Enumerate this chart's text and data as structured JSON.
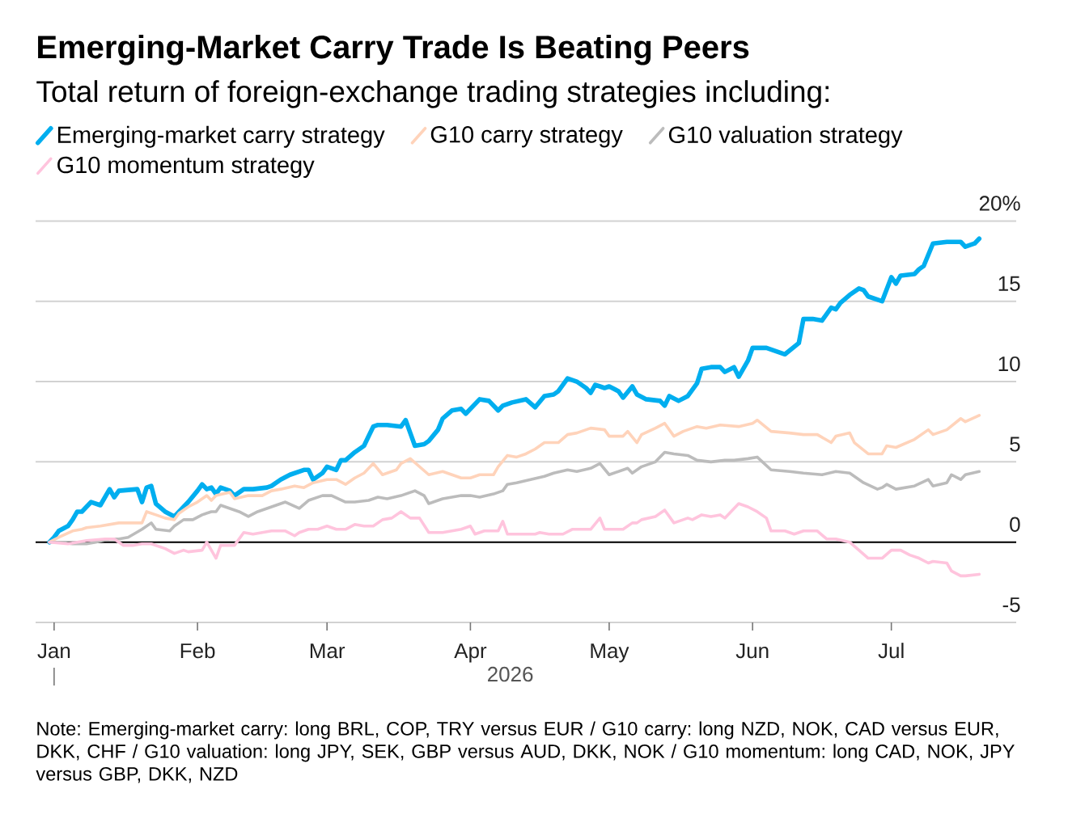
{
  "chart_data": {
    "type": "line",
    "title": "Emerging-Market Carry Trade Is Beating Peers",
    "subtitle": "Total return of foreign-exchange trading strategies including:",
    "xlabel": "2026",
    "annotations": [
      "Note: Emerging-market carry: long BRL, COP, TRY versus EUR / G10 carry: long NZD, NOK, CAD versus EUR, DKK, CHF / G10 valuation: long JPY, SEK, GBP versus AUD, DKK, NOK / G10 momentum: long CAD, NOK, JPY versus GBP, DKK, NZD"
    ],
    "xlim": [
      "2025-12-28",
      "2026-07-28"
    ],
    "xticks": [
      {
        "value": "2026-01-01",
        "label": "Jan"
      },
      {
        "value": "2026-02-01",
        "label": "Feb"
      },
      {
        "value": "2026-03-01",
        "label": "Mar"
      },
      {
        "value": "2026-04-01",
        "label": "Apr"
      },
      {
        "value": "2026-05-01",
        "label": "May"
      },
      {
        "value": "2026-06-01",
        "label": "Jun"
      },
      {
        "value": "2026-07-01",
        "label": "Jul"
      }
    ],
    "ylim": [
      -5,
      20
    ],
    "yticks": [
      -5,
      0,
      5,
      10,
      15,
      {
        "value": 20,
        "label": "20%"
      }
    ],
    "grid": "y",
    "legend": "top",
    "marker": "none",
    "ref_lines": [
      {
        "axis": "y",
        "value": 0,
        "color": "#000000"
      }
    ],
    "series": [
      {
        "name": "Emerging-market carry strategy",
        "color": "#00aeef",
        "x": [
          "2025-12-31",
          "2026-01-01",
          "2026-01-02",
          "2026-01-04",
          "2026-01-05",
          "2026-01-06",
          "2026-01-07",
          "2026-01-09",
          "2026-01-10",
          "2026-01-11",
          "2026-01-13",
          "2026-01-14",
          "2026-01-15",
          "2026-01-19",
          "2026-01-20",
          "2026-01-21",
          "2026-01-22",
          "2026-01-23",
          "2026-01-25",
          "2026-01-27",
          "2026-01-29",
          "2026-01-30",
          "2026-02-01",
          "2026-02-02",
          "2026-02-03",
          "2026-02-04",
          "2026-02-05",
          "2026-02-06",
          "2026-02-08",
          "2026-02-09",
          "2026-02-11",
          "2026-02-13",
          "2026-02-16",
          "2026-02-17",
          "2026-02-19",
          "2026-02-21",
          "2026-02-24",
          "2026-02-25",
          "2026-02-26",
          "2026-02-28",
          "2026-03-01",
          "2026-03-03",
          "2026-03-04",
          "2026-03-05",
          "2026-03-07",
          "2026-03-09",
          "2026-03-10",
          "2026-03-11",
          "2026-03-12",
          "2026-03-14",
          "2026-03-17",
          "2026-03-18",
          "2026-03-19",
          "2026-03-20",
          "2026-03-22",
          "2026-03-23",
          "2026-03-25",
          "2026-03-26",
          "2026-03-28",
          "2026-03-30",
          "2026-03-31",
          "2026-04-02",
          "2026-04-03",
          "2026-04-05",
          "2026-04-07",
          "2026-04-08",
          "2026-04-10",
          "2026-04-13",
          "2026-04-15",
          "2026-04-17",
          "2026-04-19",
          "2026-04-20",
          "2026-04-22",
          "2026-04-24",
          "2026-04-26",
          "2026-04-27",
          "2026-04-28",
          "2026-04-29",
          "2026-04-30",
          "2026-05-01",
          "2026-05-03",
          "2026-05-04",
          "2026-05-06",
          "2026-05-07",
          "2026-05-09",
          "2026-05-12",
          "2026-05-13",
          "2026-05-14",
          "2026-05-16",
          "2026-05-18",
          "2026-05-20",
          "2026-05-21",
          "2026-05-23",
          "2026-05-25",
          "2026-05-26",
          "2026-05-28",
          "2026-05-29",
          "2026-05-31",
          "2026-06-01",
          "2026-06-04",
          "2026-06-06",
          "2026-06-08",
          "2026-06-11",
          "2026-06-12",
          "2026-06-14",
          "2026-06-16",
          "2026-06-18",
          "2026-06-19",
          "2026-06-20",
          "2026-06-22",
          "2026-06-24",
          "2026-06-25",
          "2026-06-26",
          "2026-06-29",
          "2026-07-01",
          "2026-07-02",
          "2026-07-03",
          "2026-07-06",
          "2026-07-07",
          "2026-07-08",
          "2026-07-10",
          "2026-07-13",
          "2026-07-16",
          "2026-07-17",
          "2026-07-19",
          "2026-07-20"
        ],
        "values": [
          0,
          0.3,
          0.7,
          1.0,
          1.4,
          1.9,
          1.9,
          2.5,
          2.4,
          2.3,
          3.3,
          2.8,
          3.2,
          3.3,
          2.5,
          3.4,
          3.5,
          2.4,
          1.9,
          1.6,
          2.2,
          2.5,
          3.2,
          3.6,
          3.3,
          3.4,
          3.0,
          3.4,
          3.2,
          2.9,
          3.3,
          3.3,
          3.4,
          3.5,
          3.9,
          4.2,
          4.5,
          4.5,
          3.9,
          4.3,
          4.7,
          4.5,
          5.1,
          5.1,
          5.6,
          6.0,
          6.6,
          7.2,
          7.3,
          7.3,
          7.2,
          7.6,
          6.8,
          6.0,
          6.1,
          6.3,
          7.0,
          7.7,
          8.2,
          8.3,
          8.0,
          8.6,
          8.9,
          8.8,
          8.2,
          8.5,
          8.7,
          8.9,
          8.4,
          9.1,
          9.2,
          9.4,
          10.2,
          10.0,
          9.6,
          9.3,
          9.8,
          9.7,
          9.6,
          9.7,
          9.4,
          9.0,
          9.7,
          9.2,
          8.9,
          8.8,
          8.5,
          9.1,
          8.8,
          9.1,
          9.9,
          10.8,
          10.9,
          10.9,
          10.6,
          10.9,
          10.3,
          11.3,
          12.1,
          12.1,
          11.9,
          11.7,
          12.4,
          13.9,
          13.9,
          13.8,
          14.6,
          14.5,
          14.9,
          15.4,
          15.8,
          15.7,
          15.3,
          15.0,
          16.5,
          16.1,
          16.6,
          16.7,
          17.0,
          17.2,
          18.6,
          18.7,
          18.7,
          18.4,
          18.6,
          18.9
        ]
      },
      {
        "name": "G10 carry strategy",
        "color": "#ffd3ba",
        "x": [
          "2025-12-31",
          "2026-01-02",
          "2026-01-05",
          "2026-01-07",
          "2026-01-08",
          "2026-01-11",
          "2026-01-13",
          "2026-01-15",
          "2026-01-18",
          "2026-01-20",
          "2026-01-21",
          "2026-01-23",
          "2026-01-25",
          "2026-01-27",
          "2026-01-28",
          "2026-01-30",
          "2026-02-01",
          "2026-02-03",
          "2026-02-04",
          "2026-02-05",
          "2026-02-08",
          "2026-02-09",
          "2026-02-12",
          "2026-02-15",
          "2026-02-17",
          "2026-02-19",
          "2026-02-22",
          "2026-02-24",
          "2026-02-26",
          "2026-03-01",
          "2026-03-03",
          "2026-03-05",
          "2026-03-07",
          "2026-03-09",
          "2026-03-11",
          "2026-03-13",
          "2026-03-16",
          "2026-03-17",
          "2026-03-19",
          "2026-03-21",
          "2026-03-23",
          "2026-03-26",
          "2026-03-30",
          "2026-04-01",
          "2026-04-03",
          "2026-04-06",
          "2026-04-07",
          "2026-04-09",
          "2026-04-11",
          "2026-04-13",
          "2026-04-15",
          "2026-04-17",
          "2026-04-20",
          "2026-04-22",
          "2026-04-24",
          "2026-04-27",
          "2026-04-30",
          "2026-05-01",
          "2026-05-04",
          "2026-05-05",
          "2026-05-07",
          "2026-05-08",
          "2026-05-11",
          "2026-05-13",
          "2026-05-15",
          "2026-05-17",
          "2026-05-20",
          "2026-05-22",
          "2026-05-25",
          "2026-05-29",
          "2026-06-01",
          "2026-06-02",
          "2026-06-05",
          "2026-06-09",
          "2026-06-12",
          "2026-06-15",
          "2026-06-18",
          "2026-06-19",
          "2026-06-22",
          "2026-06-23",
          "2026-06-26",
          "2026-06-29",
          "2026-06-30",
          "2026-07-02",
          "2026-07-06",
          "2026-07-09",
          "2026-07-10",
          "2026-07-13",
          "2026-07-16",
          "2026-07-17",
          "2026-07-20"
        ],
        "values": [
          0,
          0.3,
          0.7,
          0.8,
          0.9,
          1.0,
          1.1,
          1.2,
          1.2,
          1.2,
          1.9,
          1.7,
          1.5,
          1.4,
          1.8,
          2.2,
          2.5,
          2.9,
          2.6,
          2.9,
          3.1,
          2.7,
          2.9,
          2.9,
          3.2,
          3.3,
          3.5,
          3.4,
          3.7,
          3.9,
          3.9,
          3.6,
          4.0,
          4.3,
          4.9,
          4.2,
          4.5,
          4.9,
          5.2,
          4.7,
          4.2,
          4.4,
          4.0,
          4.0,
          4.2,
          4.2,
          4.7,
          5.4,
          5.3,
          5.5,
          5.8,
          6.2,
          6.2,
          6.7,
          6.8,
          7.1,
          7.0,
          6.6,
          6.6,
          6.9,
          6.2,
          6.7,
          7.1,
          7.4,
          6.6,
          6.9,
          7.2,
          7.1,
          7.3,
          7.2,
          7.4,
          7.6,
          6.9,
          6.8,
          6.7,
          6.7,
          6.2,
          6.6,
          6.8,
          6.2,
          5.5,
          5.5,
          6.0,
          5.9,
          6.4,
          7.0,
          6.7,
          7.0,
          7.7,
          7.5,
          7.9
        ]
      },
      {
        "name": "G10 valuation strategy",
        "color": "#bcbcbc",
        "x": [
          "2025-12-31",
          "2026-01-02",
          "2026-01-05",
          "2026-01-08",
          "2026-01-10",
          "2026-01-13",
          "2026-01-15",
          "2026-01-17",
          "2026-01-20",
          "2026-01-22",
          "2026-01-23",
          "2026-01-26",
          "2026-01-27",
          "2026-01-29",
          "2026-01-31",
          "2026-02-02",
          "2026-02-04",
          "2026-02-05",
          "2026-02-06",
          "2026-02-07",
          "2026-02-10",
          "2026-02-12",
          "2026-02-14",
          "2026-02-17",
          "2026-02-20",
          "2026-02-23",
          "2026-02-25",
          "2026-02-28",
          "2026-03-02",
          "2026-03-05",
          "2026-03-07",
          "2026-03-10",
          "2026-03-12",
          "2026-03-14",
          "2026-03-17",
          "2026-03-20",
          "2026-03-22",
          "2026-03-23",
          "2026-03-26",
          "2026-03-30",
          "2026-04-01",
          "2026-04-03",
          "2026-04-06",
          "2026-04-08",
          "2026-04-09",
          "2026-04-11",
          "2026-04-14",
          "2026-04-17",
          "2026-04-19",
          "2026-04-22",
          "2026-04-24",
          "2026-04-27",
          "2026-04-29",
          "2026-05-01",
          "2026-05-03",
          "2026-05-05",
          "2026-05-06",
          "2026-05-08",
          "2026-05-11",
          "2026-05-13",
          "2026-05-15",
          "2026-05-18",
          "2026-05-20",
          "2026-05-23",
          "2026-05-26",
          "2026-05-28",
          "2026-05-31",
          "2026-06-02",
          "2026-06-05",
          "2026-06-09",
          "2026-06-12",
          "2026-06-16",
          "2026-06-19",
          "2026-06-22",
          "2026-06-25",
          "2026-06-28",
          "2026-06-29",
          "2026-06-30",
          "2026-07-02",
          "2026-07-06",
          "2026-07-09",
          "2026-07-10",
          "2026-07-13",
          "2026-07-14",
          "2026-07-16",
          "2026-07-17",
          "2026-07-20"
        ],
        "values": [
          0,
          0.0,
          -0.1,
          -0.1,
          0.0,
          0.2,
          0.2,
          0.3,
          0.8,
          1.2,
          0.8,
          0.7,
          1.0,
          1.4,
          1.4,
          1.7,
          1.9,
          1.9,
          2.3,
          2.2,
          1.9,
          1.6,
          1.9,
          2.2,
          2.5,
          2.1,
          2.6,
          2.9,
          2.9,
          2.5,
          2.5,
          2.6,
          2.8,
          2.7,
          2.9,
          3.2,
          2.9,
          2.4,
          2.7,
          2.9,
          2.9,
          2.8,
          3.0,
          3.2,
          3.6,
          3.7,
          3.9,
          4.1,
          4.3,
          4.5,
          4.4,
          4.6,
          4.9,
          4.2,
          4.4,
          4.6,
          4.3,
          4.7,
          5.0,
          5.6,
          5.5,
          5.4,
          5.1,
          5.0,
          5.1,
          5.1,
          5.2,
          5.3,
          4.5,
          4.4,
          4.3,
          4.2,
          4.4,
          4.3,
          3.7,
          3.3,
          3.4,
          3.6,
          3.3,
          3.5,
          3.9,
          3.5,
          3.7,
          4.2,
          3.9,
          4.2,
          4.4
        ]
      },
      {
        "name": "G10 momentum strategy",
        "color": "#ffc4dd",
        "x": [
          "2025-12-31",
          "2026-01-04",
          "2026-01-06",
          "2026-01-08",
          "2026-01-12",
          "2026-01-14",
          "2026-01-16",
          "2026-01-18",
          "2026-01-20",
          "2026-01-22",
          "2026-01-25",
          "2026-01-27",
          "2026-01-29",
          "2026-01-30",
          "2026-02-02",
          "2026-02-03",
          "2026-02-04",
          "2026-02-05",
          "2026-02-06",
          "2026-02-07",
          "2026-02-09",
          "2026-02-10",
          "2026-02-11",
          "2026-02-13",
          "2026-02-17",
          "2026-02-20",
          "2026-02-22",
          "2026-02-23",
          "2026-02-25",
          "2026-02-27",
          "2026-03-01",
          "2026-03-03",
          "2026-03-05",
          "2026-03-07",
          "2026-03-09",
          "2026-03-11",
          "2026-03-13",
          "2026-03-15",
          "2026-03-17",
          "2026-03-19",
          "2026-03-21",
          "2026-03-23",
          "2026-03-26",
          "2026-03-30",
          "2026-04-01",
          "2026-04-02",
          "2026-04-04",
          "2026-04-07",
          "2026-04-08",
          "2026-04-09",
          "2026-04-11",
          "2026-04-15",
          "2026-04-16",
          "2026-04-18",
          "2026-04-21",
          "2026-04-23",
          "2026-04-27",
          "2026-04-29",
          "2026-04-30",
          "2026-05-04",
          "2026-05-06",
          "2026-05-07",
          "2026-05-08",
          "2026-05-11",
          "2026-05-13",
          "2026-05-15",
          "2026-05-18",
          "2026-05-19",
          "2026-05-21",
          "2026-05-23",
          "2026-05-25",
          "2026-05-26",
          "2026-05-29",
          "2026-05-31",
          "2026-06-02",
          "2026-06-04",
          "2026-06-05",
          "2026-06-08",
          "2026-06-10",
          "2026-06-12",
          "2026-06-15",
          "2026-06-17",
          "2026-06-19",
          "2026-06-22",
          "2026-06-24",
          "2026-06-26",
          "2026-06-29",
          "2026-07-01",
          "2026-07-03",
          "2026-07-05",
          "2026-07-07",
          "2026-07-09",
          "2026-07-10",
          "2026-07-13",
          "2026-07-14",
          "2026-07-16",
          "2026-07-17",
          "2026-07-20"
        ],
        "values": [
          0,
          -0.1,
          0.0,
          0.1,
          0.2,
          0.2,
          -0.2,
          -0.2,
          -0.1,
          -0.1,
          -0.4,
          -0.7,
          -0.5,
          -0.6,
          -0.5,
          0.0,
          -0.5,
          -1.0,
          -0.2,
          -0.2,
          -0.2,
          0.2,
          0.6,
          0.5,
          0.7,
          0.7,
          0.4,
          0.6,
          0.8,
          0.8,
          1.0,
          0.8,
          0.8,
          1.1,
          1.0,
          1.0,
          1.4,
          1.5,
          1.9,
          1.5,
          1.5,
          0.6,
          0.6,
          0.8,
          1.0,
          0.5,
          0.7,
          0.7,
          1.3,
          0.5,
          0.5,
          0.5,
          0.6,
          0.5,
          0.5,
          0.8,
          0.8,
          1.5,
          0.8,
          0.8,
          1.2,
          1.2,
          1.4,
          1.6,
          2.0,
          1.2,
          1.5,
          1.4,
          1.7,
          1.6,
          1.7,
          1.5,
          2.4,
          2.2,
          1.9,
          1.5,
          0.7,
          0.7,
          0.5,
          0.7,
          0.7,
          0.2,
          0.2,
          0.0,
          -0.5,
          -1.0,
          -1.0,
          -0.5,
          -0.5,
          -0.8,
          -1.0,
          -1.3,
          -1.2,
          -1.3,
          -1.8,
          -2.1,
          -2.1,
          -2.0
        ]
      }
    ]
  }
}
